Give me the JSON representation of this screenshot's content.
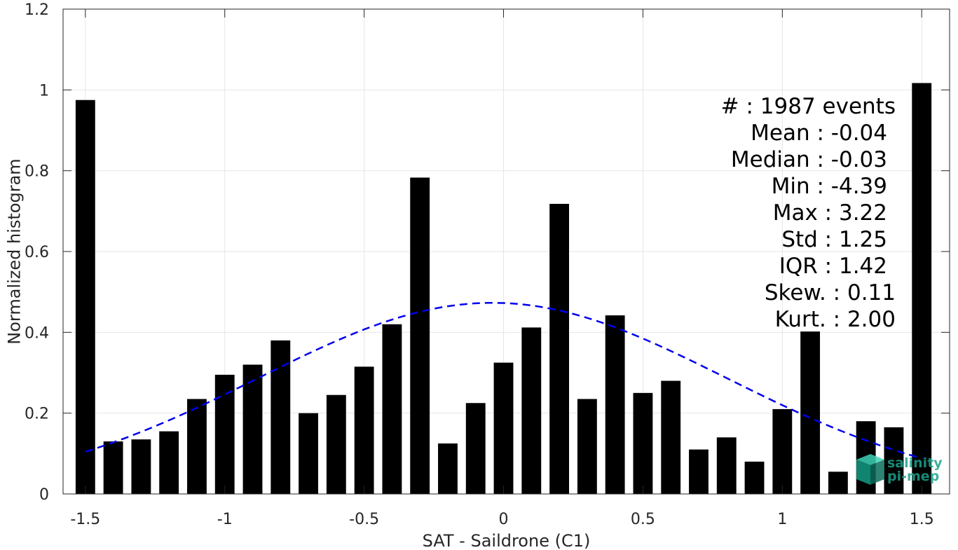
{
  "chart_data": {
    "type": "bar",
    "title": "",
    "xlabel": "SAT - Saildrone (C1)",
    "ylabel": "Normalized histogram",
    "xlim": [
      -1.58,
      1.6
    ],
    "ylim": [
      0,
      1.2
    ],
    "grid": true,
    "xticks": [
      -1.5,
      -1,
      -0.5,
      0,
      0.5,
      1,
      1.5
    ],
    "xtick_labels": [
      "-1.5",
      "-1",
      "-0.5",
      "0",
      "0.5",
      "1",
      "1.5"
    ],
    "yticks": [
      0,
      0.2,
      0.4,
      0.6,
      0.8,
      1,
      1.2
    ],
    "ytick_labels": [
      "0",
      "0.2",
      "0.4",
      "0.6",
      "0.8",
      "1",
      "1.2"
    ],
    "bar_color": "#000000",
    "bar_width": 0.07,
    "x": [
      -1.5,
      -1.4,
      -1.3,
      -1.2,
      -1.1,
      -1.0,
      -0.9,
      -0.8,
      -0.7,
      -0.6,
      -0.5,
      -0.4,
      -0.3,
      -0.2,
      -0.1,
      0.0,
      0.1,
      0.2,
      0.3,
      0.4,
      0.5,
      0.6,
      0.7,
      0.8,
      0.9,
      1.0,
      1.1,
      1.2,
      1.3,
      1.4,
      1.5
    ],
    "values": [
      0.975,
      0.13,
      0.135,
      0.155,
      0.235,
      0.295,
      0.32,
      0.38,
      0.2,
      0.245,
      0.315,
      0.42,
      0.783,
      0.125,
      0.225,
      0.325,
      0.412,
      0.718,
      0.235,
      0.442,
      0.25,
      0.28,
      0.11,
      0.14,
      0.08,
      0.21,
      0.402,
      0.055,
      0.18,
      0.165,
      1.017
    ],
    "fit_curve": {
      "type": "normal",
      "mean": -0.04,
      "std": 0.84,
      "peak": 0.473,
      "x_range": [
        -1.5,
        1.5
      ],
      "style": "dashed",
      "color": "#0000ee"
    },
    "annotations": [
      "#  : 1987 events",
      "Mean : -0.04",
      "Median : -0.03",
      "Min : -4.39",
      "Max : 3.22",
      "Std : 1.25",
      "IQR : 1.42",
      "Skew. : 0.11",
      "Kurt. : 2.00"
    ]
  },
  "logo": {
    "line1": "salinity",
    "line2": "pi-mep",
    "color": "#1aa38c"
  }
}
